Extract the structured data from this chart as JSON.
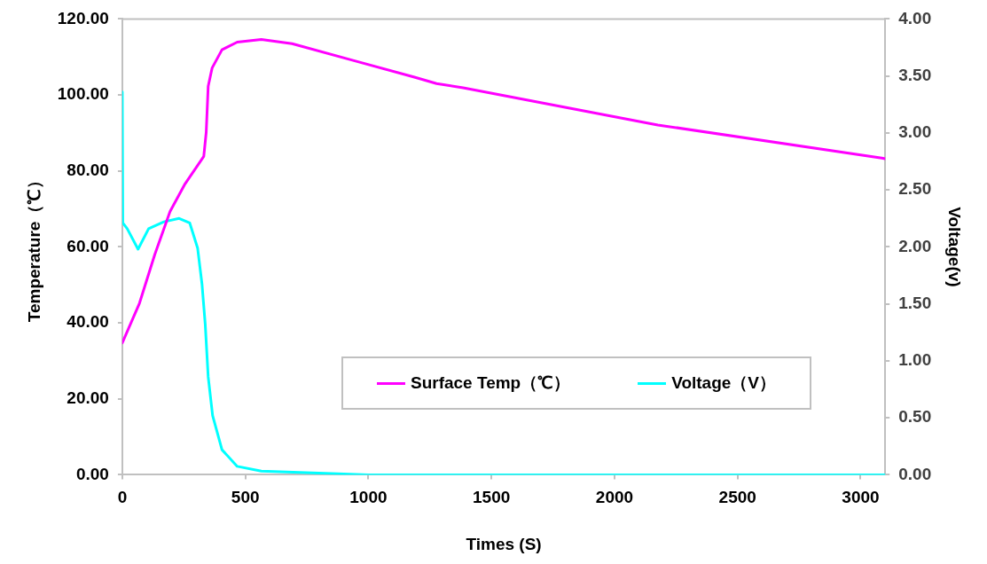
{
  "chart_data": {
    "type": "line",
    "xlabel": "Times (S)",
    "ylabel": "Temperature（℃）",
    "y2label": "Voltage(v)",
    "xlim": [
      0,
      3100
    ],
    "xticks": [
      0,
      500,
      1000,
      1500,
      2000,
      2500,
      3000
    ],
    "ylim": [
      0,
      120
    ],
    "yticks": [
      {
        "value": 0,
        "label": "0.00"
      },
      {
        "value": 20,
        "label": "20.00"
      },
      {
        "value": 40,
        "label": "40.00"
      },
      {
        "value": 60,
        "label": "60.00"
      },
      {
        "value": 80,
        "label": "80.00"
      },
      {
        "value": 100,
        "label": "100.00"
      },
      {
        "value": 120,
        "label": "120.00"
      }
    ],
    "y2lim": [
      0,
      4
    ],
    "y2ticks": [
      {
        "value": 0,
        "label": "0.00"
      },
      {
        "value": 0.5,
        "label": "0.50"
      },
      {
        "value": 1,
        "label": "1.00"
      },
      {
        "value": 1.5,
        "label": "1.50"
      },
      {
        "value": 2,
        "label": "2.00"
      },
      {
        "value": 2.5,
        "label": "2.50"
      },
      {
        "value": 3,
        "label": "3.00"
      },
      {
        "value": 3.5,
        "label": "3.50"
      },
      {
        "value": 4,
        "label": "4.00"
      }
    ],
    "grid": false,
    "legend": "bottom right",
    "marker": "none",
    "line_style": "solid",
    "series": [
      {
        "name": "Surface Temp（℃）",
        "color": "#ff00ff",
        "x": [
          0,
          70,
          132,
          194,
          255,
          331,
          341,
          349,
          365,
          405,
          467,
          565,
          690,
          938,
          1187,
          1277,
          1385,
          2176,
          3086,
          3100
        ],
        "values": [
          34.7,
          45.2,
          58,
          69.3,
          76.6,
          83.8,
          90.2,
          102.3,
          107.1,
          111.9,
          113.9,
          114.6,
          113.5,
          109.1,
          104.7,
          103,
          101.9,
          92.1,
          83.4,
          83.2
        ]
      },
      {
        "name": "Voltage（V）",
        "color": "#00ffff",
        "axis": "y2",
        "x": [
          0,
          2,
          20,
          64,
          107,
          169,
          231,
          274,
          306,
          324,
          337,
          349,
          367,
          405,
          467,
          565,
          876,
          1000,
          3100
        ],
        "values": [
          3.36,
          2.21,
          2.16,
          1.98,
          2.16,
          2.22,
          2.25,
          2.21,
          1.99,
          1.67,
          1.32,
          0.86,
          0.52,
          0.22,
          0.074,
          0.033,
          0.008,
          0,
          0
        ]
      }
    ]
  }
}
